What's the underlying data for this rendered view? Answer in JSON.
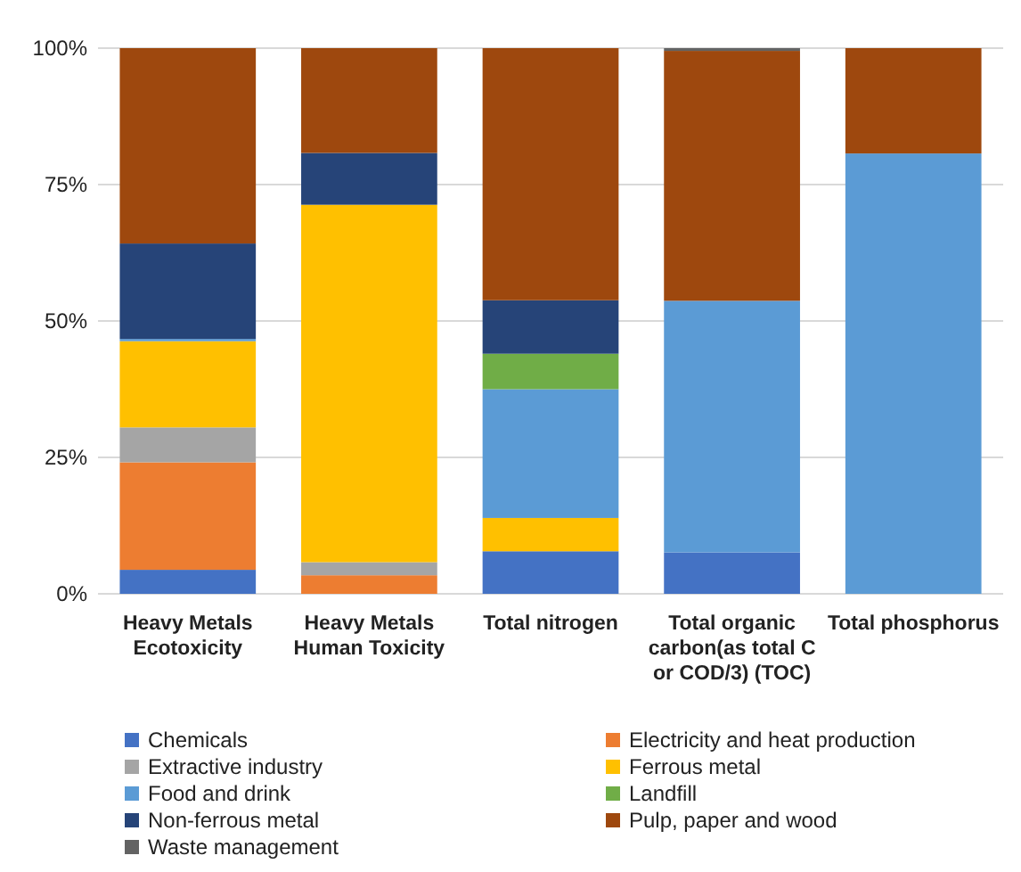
{
  "chart_data": {
    "type": "bar",
    "stacked": true,
    "categories": [
      "Heavy Metals Ecotoxicity",
      "Heavy Metals Human Toxicity",
      "Total nitrogen",
      "Total organic carbon(as total C or COD/3) (TOC)",
      "Total phosphorus"
    ],
    "series": [
      {
        "name": "Chemicals",
        "color": "#4472c4",
        "values": [
          4.4,
          0,
          7.8,
          7.6,
          0
        ]
      },
      {
        "name": "Electricity and heat production",
        "color": "#ed7d31",
        "values": [
          19.7,
          3.4,
          0,
          0,
          0
        ]
      },
      {
        "name": "Extractive industry",
        "color": "#a5a5a5",
        "values": [
          6.4,
          2.4,
          0,
          0,
          0
        ]
      },
      {
        "name": "Ferrous metal",
        "color": "#ffc000",
        "values": [
          15.8,
          65.5,
          6.1,
          0,
          0
        ]
      },
      {
        "name": "Food and drink",
        "color": "#5b9bd5",
        "values": [
          0.4,
          0,
          23.6,
          46.1,
          80.7
        ]
      },
      {
        "name": "Landfill",
        "color": "#70ad47",
        "values": [
          0,
          0,
          6.5,
          0,
          0
        ]
      },
      {
        "name": "Non-ferrous metal",
        "color": "#264478",
        "values": [
          17.5,
          9.5,
          9.8,
          0,
          0
        ]
      },
      {
        "name": "Pulp, paper and wood",
        "color": "#9e480e",
        "values": [
          35.8,
          19.2,
          46.2,
          45.8,
          19.3
        ]
      },
      {
        "name": "Waste management",
        "color": "#636363",
        "values": [
          0,
          0,
          0,
          0.5,
          0
        ]
      }
    ],
    "ylim": [
      0,
      100
    ],
    "yticks": [
      {
        "value": 0,
        "label": "0%"
      },
      {
        "value": 25,
        "label": "25%"
      },
      {
        "value": 50,
        "label": "50%"
      },
      {
        "value": 75,
        "label": "75%"
      },
      {
        "value": 100,
        "label": "100%"
      }
    ],
    "grid": "y",
    "legend": "bottom"
  }
}
